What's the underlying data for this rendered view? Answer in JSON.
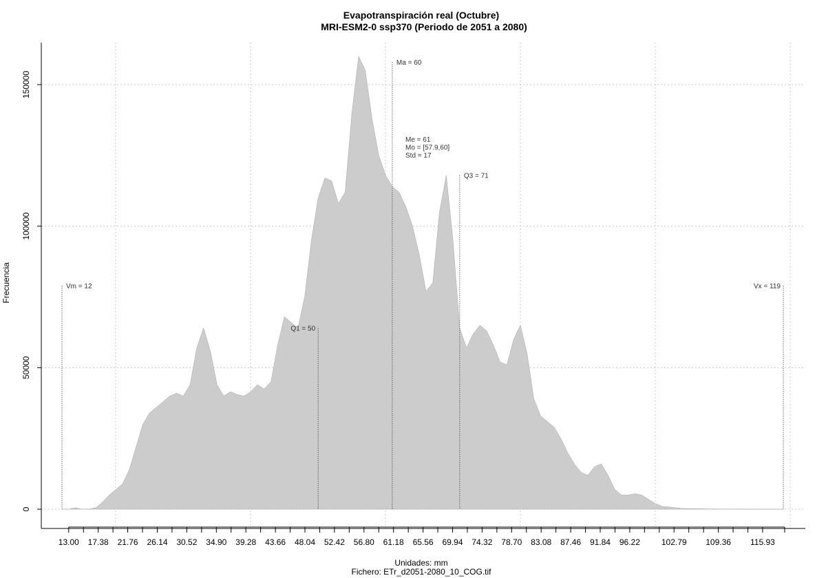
{
  "chart_data": {
    "type": "area",
    "title": "Evapotranspiración real (Octubre)",
    "subtitle": "MRI-ESM2-0 ssp370 (Periodo de 2051 a 2080)",
    "xlabel": "Unidades: mm",
    "footer": "Fichero: ETr_d2051-2080_10_COG.tif",
    "ylabel": "Frecuencia",
    "xlim": [
      12,
      119
    ],
    "ylim": [
      0,
      160000
    ],
    "x_ticks": [
      "13.00",
      "17.38",
      "21.76",
      "26.14",
      "30.52",
      "34.90",
      "39.28",
      "43.66",
      "48.04",
      "52.42",
      "56.80",
      "61.18",
      "65.56",
      "69.94",
      "74.32",
      "78.70",
      "83.08",
      "87.46",
      "91.84",
      "96.22",
      "102.79",
      "109.36",
      "115.93"
    ],
    "y_ticks": [
      "0",
      "50000",
      "100000",
      "150000"
    ],
    "grid": true,
    "fill_color": "#cccccc",
    "series": [
      {
        "x": [
          12,
          13,
          14,
          15,
          16,
          17,
          18,
          19,
          20,
          21,
          22,
          23,
          24,
          25,
          26,
          27,
          28,
          29,
          30,
          31,
          32,
          33,
          34,
          35,
          36,
          37,
          38,
          39,
          40,
          41,
          42,
          43,
          44,
          45,
          46,
          47,
          48,
          49,
          50,
          51,
          52,
          53,
          54,
          55,
          56,
          57,
          58,
          59,
          60,
          61,
          62,
          63,
          64,
          65,
          66,
          67,
          68,
          69,
          70,
          71,
          72,
          73,
          74,
          75,
          76,
          77,
          78,
          79,
          80,
          81,
          82,
          83,
          84,
          85,
          86,
          87,
          88,
          89,
          90,
          91,
          92,
          93,
          94,
          95,
          96,
          97,
          98,
          99,
          100,
          101,
          102,
          103,
          104,
          105,
          106,
          107,
          108,
          109,
          110,
          111,
          112,
          113,
          114,
          115,
          116,
          117,
          118,
          119
        ],
        "y": [
          0,
          0,
          500,
          0,
          0,
          500,
          2500,
          5000,
          7000,
          9000,
          14000,
          22000,
          30000,
          34000,
          36000,
          38000,
          40000,
          41000,
          40000,
          44000,
          57000,
          64000,
          56000,
          44000,
          40000,
          41500,
          40500,
          40000,
          41500,
          44000,
          42500,
          45000,
          58000,
          68000,
          66000,
          64000,
          75000,
          95000,
          110000,
          117000,
          116000,
          108000,
          112000,
          140000,
          160000,
          155000,
          138000,
          125000,
          118000,
          114000,
          112000,
          107000,
          100000,
          90000,
          77000,
          80000,
          105000,
          118000,
          95000,
          64000,
          57000,
          62000,
          65000,
          63000,
          58000,
          52000,
          51000,
          60000,
          65000,
          55000,
          39000,
          33000,
          31000,
          29000,
          25000,
          20000,
          16000,
          13000,
          12000,
          15000,
          16000,
          12000,
          7000,
          5000,
          5000,
          5500,
          5000,
          3500,
          2000,
          1000,
          800,
          500,
          300,
          200,
          200,
          150,
          100,
          100,
          50,
          50,
          50,
          30,
          20,
          10,
          0,
          0,
          0,
          0
        ]
      }
    ],
    "annotations": [
      {
        "label": "Vm = 12",
        "x": 12,
        "y_top": 79000,
        "align": "left"
      },
      {
        "label": "Q1 = 50",
        "x": 50,
        "y_top": 64000,
        "align": "right"
      },
      {
        "label": "Ma = 60",
        "x": 61,
        "y_top": 158000,
        "align": "left"
      },
      {
        "label": "Q3 = 71",
        "x": 71,
        "y_top": 118000,
        "align": "left"
      },
      {
        "label": "Vx = 119",
        "x": 119,
        "y_top": 79000,
        "align": "right"
      }
    ],
    "stats_box": [
      "Me = 61",
      "Mo = [57.9,60]",
      "Std = 17"
    ]
  }
}
